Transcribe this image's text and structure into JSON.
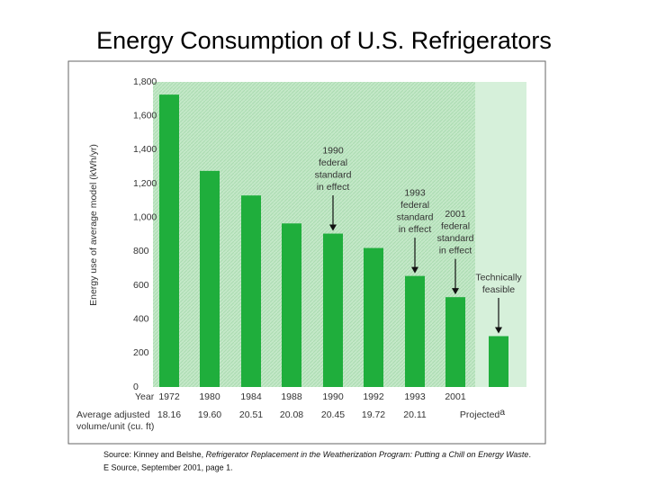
{
  "chart_data": {
    "type": "bar",
    "title": "Energy Consumption of U.S. Refrigerators",
    "y_label": "Energy use of average model (kWh/yr)",
    "x_row_label": "Year",
    "categories": [
      "1972",
      "1980",
      "1984",
      "1988",
      "1990",
      "1992",
      "1993",
      "2001",
      null
    ],
    "values": [
      1725,
      1275,
      1130,
      965,
      905,
      820,
      655,
      530,
      300
    ],
    "color": "#1fae3c",
    "ylim": [
      0,
      1800
    ],
    "yticks": [
      0,
      200,
      400,
      600,
      800,
      {
        "value": 1000,
        "label": "1,000"
      },
      {
        "value": 1200,
        "label": "1,200"
      },
      {
        "value": 1400,
        "label": "1,400"
      },
      {
        "value": 1600,
        "label": "1,600"
      },
      {
        "value": 1800,
        "label": "1,800"
      }
    ],
    "volume_row": {
      "label": [
        "Average adjusted",
        "volume/unit (cu. ft)"
      ],
      "values": [
        "18.16",
        "19.60",
        "20.51",
        "20.08",
        "20.45",
        "19.72",
        "20.11",
        null,
        "Projected"
      ],
      "footnote": "a"
    },
    "annotations": [
      {
        "lines": [
          "1990",
          "federal",
          "standard",
          "in effect"
        ],
        "bar": 4
      },
      {
        "lines": [
          "1993",
          "federal",
          "standard",
          "in effect"
        ],
        "bar": 6
      },
      {
        "lines": [
          "2001",
          "federal",
          "standard",
          "in effect"
        ],
        "bar": 7
      },
      {
        "lines": [
          "Technically",
          "feasible"
        ],
        "bar": 8
      }
    ],
    "source": {
      "prefix": "Source: Kinney and Belshe, ",
      "italic": "Refrigerator Replacement in the Weatherization Program: Putting a Chill on Energy Waste",
      "suffix": ".",
      "line2": "E Source, September 2001, page 1."
    }
  }
}
